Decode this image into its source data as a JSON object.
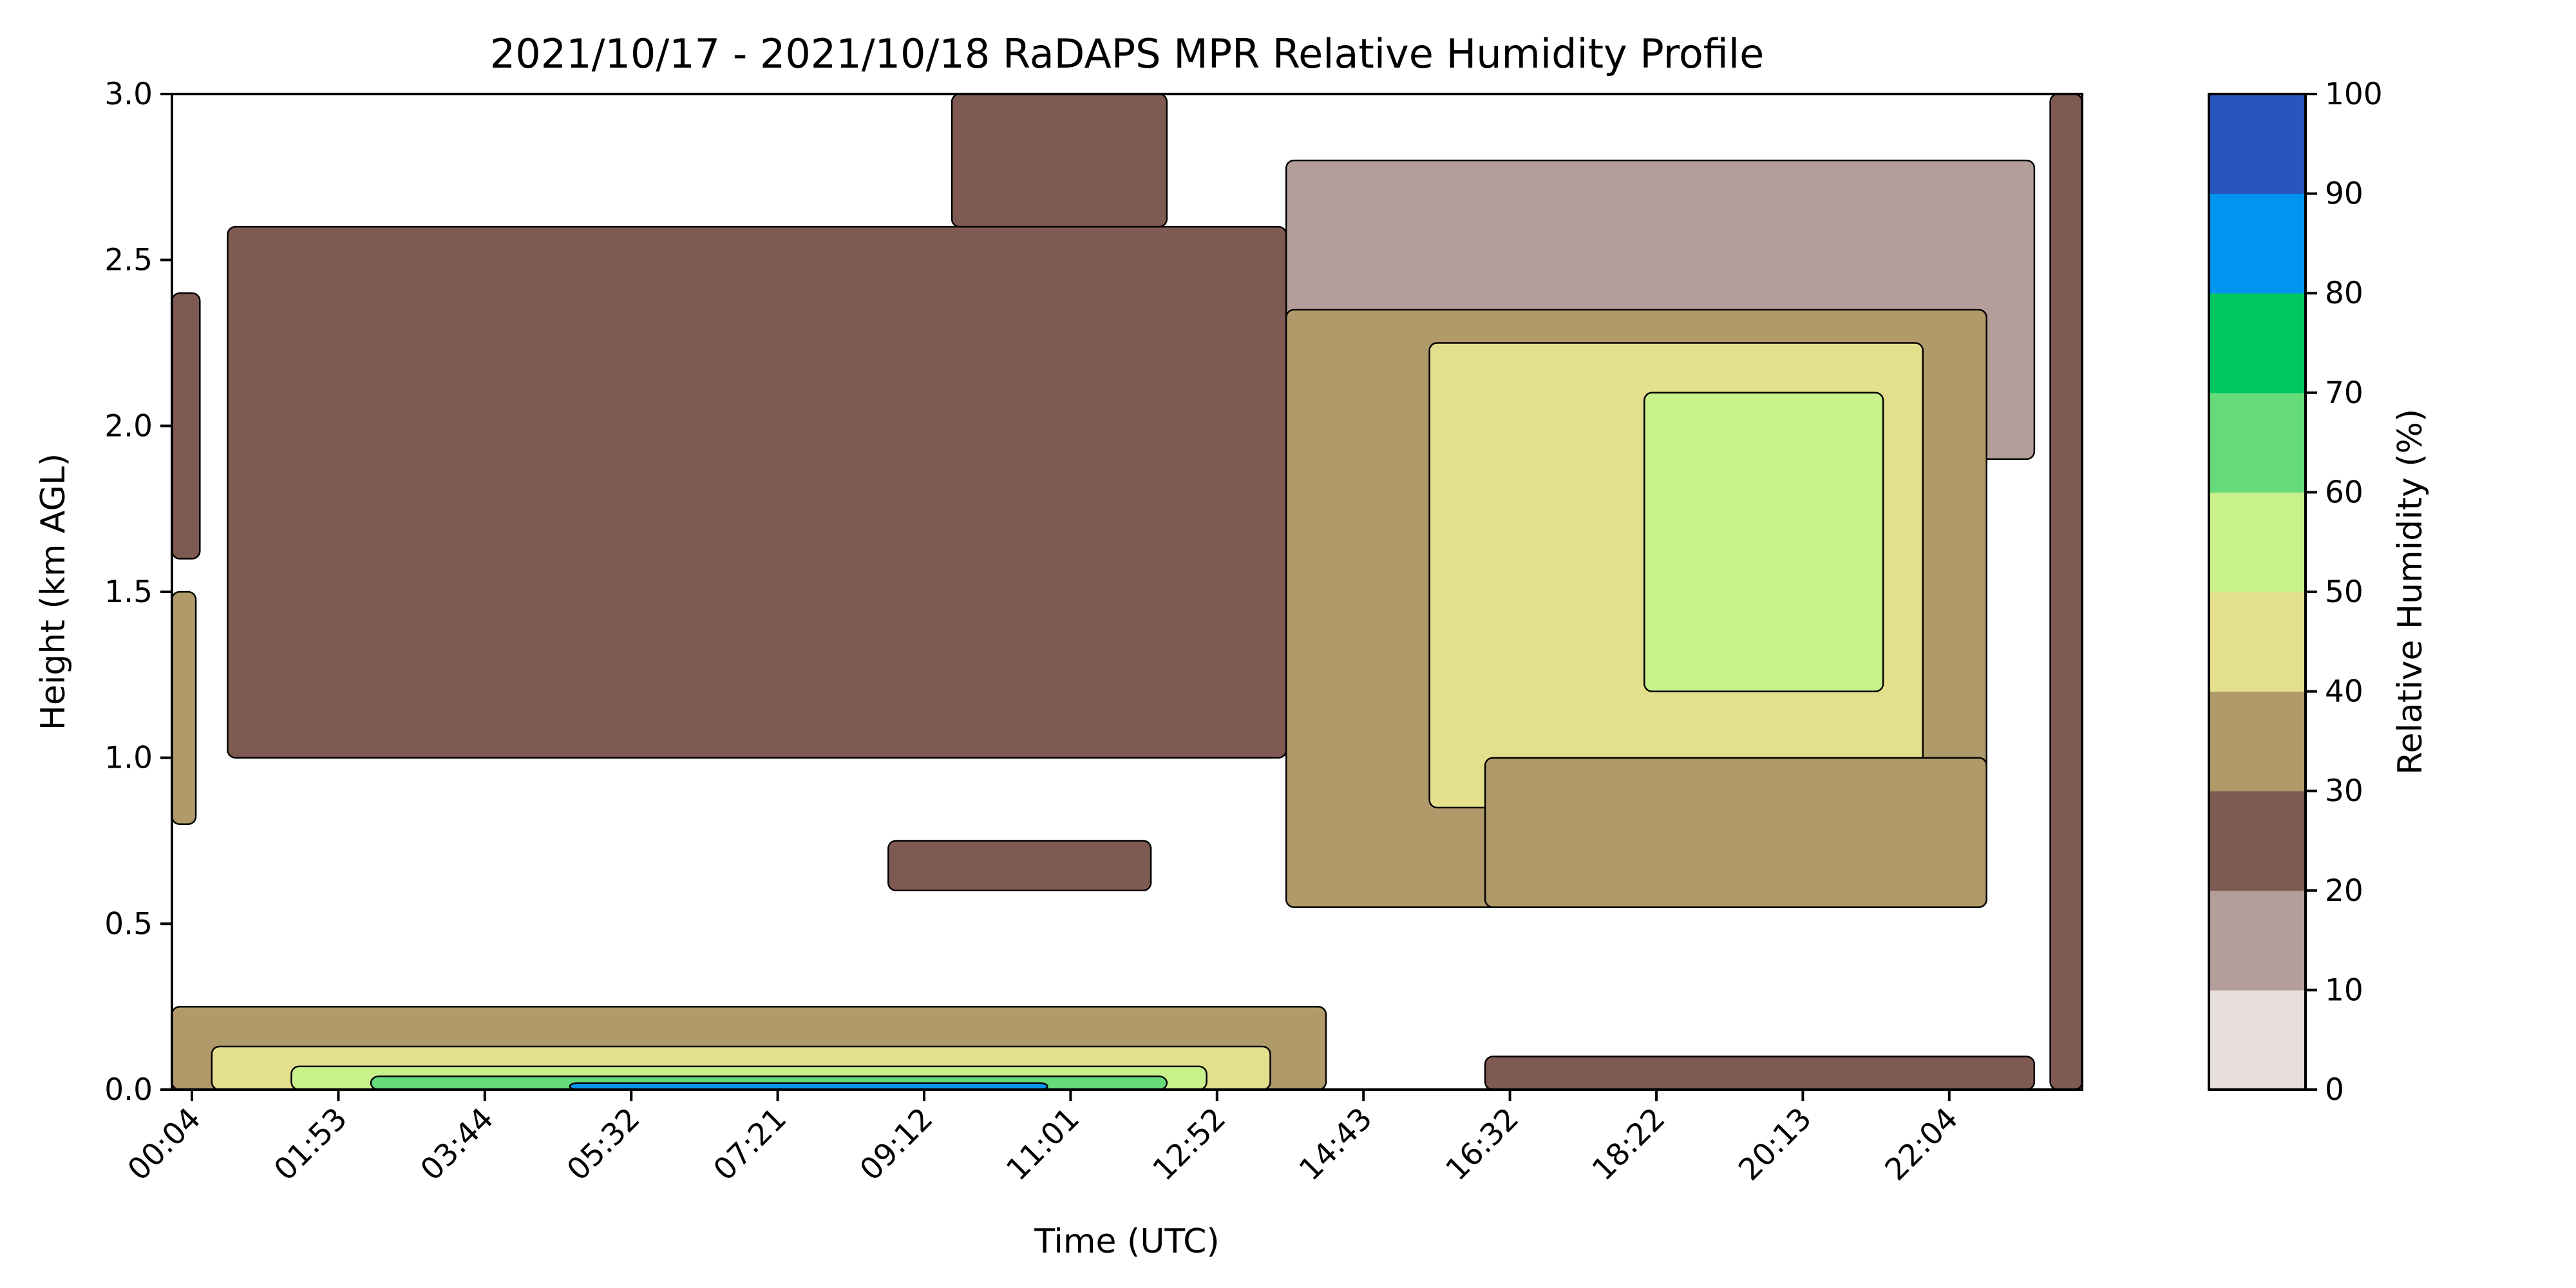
{
  "chart_data": {
    "type": "heatmap",
    "title": "2021/10/17 - 2021/10/18 RaDAPS MPR Relative Humidity Profile",
    "xlabel": "Time (UTC)",
    "ylabel": "Height (km AGL)",
    "x_ticks": [
      "00:04",
      "01:53",
      "03:44",
      "05:32",
      "07:21",
      "09:12",
      "11:01",
      "12:52",
      "14:43",
      "16:32",
      "18:22",
      "20:13",
      "22:04"
    ],
    "y_ticks": [
      "0.0",
      "0.5",
      "1.0",
      "1.5",
      "2.0",
      "2.5",
      "3.0"
    ],
    "ylim": [
      0,
      3
    ],
    "colorbar": {
      "label": "Relative Humidity (%)",
      "ticks": [
        "0",
        "10",
        "20",
        "30",
        "40",
        "50",
        "60",
        "70",
        "80",
        "90",
        "100"
      ],
      "colors": [
        "#e6dedc",
        "#b49e9a",
        "#7f5a52",
        "#b09a6a",
        "#e4df8d",
        "#c9f28c",
        "#66db7a",
        "#00c860",
        "#0096f0",
        "#2855c0"
      ]
    },
    "regions": [
      {
        "level": "20-30",
        "start_hour": 0.0,
        "end_hour": 0.35,
        "bottom_km": 1.6,
        "top_km": 2.4
      },
      {
        "level": "20-30",
        "start_hour": 0.7,
        "end_hour": 14.0,
        "bottom_km": 1.0,
        "top_km": 2.6
      },
      {
        "level": "20-30",
        "start_hour": 9.8,
        "end_hour": 12.5,
        "bottom_km": 2.6,
        "top_km": 3.0
      },
      {
        "level": "10-20",
        "start_hour": 14.0,
        "end_hour": 23.4,
        "bottom_km": 1.9,
        "top_km": 2.8
      },
      {
        "level": "30-40",
        "start_hour": 14.0,
        "end_hour": 22.8,
        "bottom_km": 0.55,
        "top_km": 2.35
      },
      {
        "level": "40-50",
        "start_hour": 15.8,
        "end_hour": 22.0,
        "bottom_km": 0.85,
        "top_km": 2.25
      },
      {
        "level": "50-60",
        "start_hour": 18.5,
        "end_hour": 21.5,
        "bottom_km": 1.2,
        "top_km": 2.1
      },
      {
        "level": "30-40",
        "start_hour": 16.5,
        "end_hour": 22.8,
        "bottom_km": 0.55,
        "top_km": 1.0
      },
      {
        "level": "20-30",
        "start_hour": 9.0,
        "end_hour": 12.3,
        "bottom_km": 0.6,
        "top_km": 0.75
      },
      {
        "level": "30-40",
        "start_hour": 0.0,
        "end_hour": 0.3,
        "bottom_km": 0.8,
        "top_km": 1.5
      },
      {
        "level": "30-40",
        "start_hour": 0.0,
        "end_hour": 14.5,
        "bottom_km": 0.0,
        "top_km": 0.25
      },
      {
        "level": "40-50",
        "start_hour": 0.5,
        "end_hour": 13.8,
        "bottom_km": 0.0,
        "top_km": 0.13
      },
      {
        "level": "50-60",
        "start_hour": 1.5,
        "end_hour": 13.0,
        "bottom_km": 0.0,
        "top_km": 0.07
      },
      {
        "level": "60-70",
        "start_hour": 2.5,
        "end_hour": 12.5,
        "bottom_km": 0.0,
        "top_km": 0.04
      },
      {
        "level": "80-90",
        "start_hour": 5.0,
        "end_hour": 11.0,
        "bottom_km": 0.0,
        "top_km": 0.02
      },
      {
        "level": "20-30",
        "start_hour": 16.5,
        "end_hour": 23.4,
        "bottom_km": 0.0,
        "top_km": 0.1
      },
      {
        "level": "20-30",
        "start_hour": 23.6,
        "end_hour": 24.0,
        "bottom_km": 0.0,
        "top_km": 3.0
      }
    ]
  }
}
